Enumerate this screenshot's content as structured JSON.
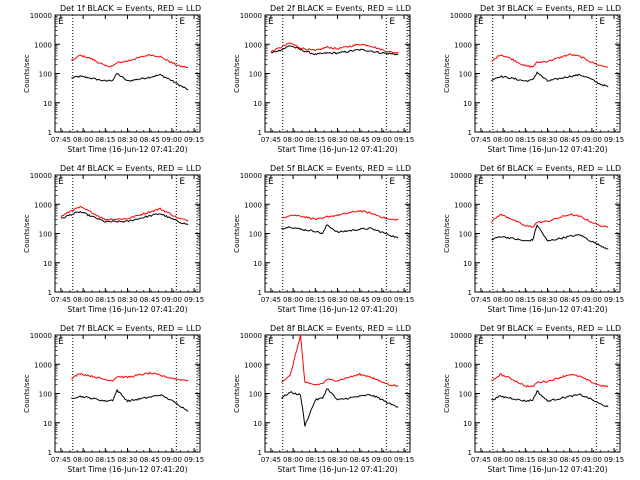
{
  "colors": {
    "events": "#000000",
    "lld": "#ff0000",
    "background": "#ffffff",
    "axis": "#000000"
  },
  "common": {
    "xlabel": "Start Time (16-Jun-12 07:41:20)",
    "ylabel": "Counts/sec",
    "x_ticks": [
      "07:45",
      "08:00",
      "08:15",
      "08:30",
      "08:45",
      "09:00",
      "09:15"
    ],
    "y_ticks": [
      "1",
      "10",
      "100",
      "1000",
      "10000"
    ],
    "marker": "E"
  },
  "chart_data": [
    {
      "type": "line",
      "title": "Det 1f BLACK = Events, RED = LLD",
      "xlabel": "Start Time (16-Jun-12 07:41:20)",
      "ylabel": "Counts/sec",
      "yscale": "log",
      "ylim": [
        1,
        10000
      ],
      "xlim": [
        "07:41",
        "09:19"
      ],
      "x": [
        "07:52",
        "07:58",
        "08:05",
        "08:15",
        "08:20",
        "08:23",
        "08:30",
        "08:45",
        "08:52",
        "08:58",
        "09:05",
        "09:11"
      ],
      "series": [
        {
          "name": "Events",
          "values": [
            70,
            80,
            70,
            55,
            60,
            100,
            55,
            75,
            90,
            65,
            40,
            28
          ]
        },
        {
          "name": "LLD",
          "values": [
            270,
            420,
            330,
            180,
            180,
            230,
            270,
            440,
            380,
            260,
            180,
            160
          ]
        }
      ],
      "dotted_lines": [
        "07:53",
        "09:03",
        "09:17"
      ],
      "marker": "E"
    },
    {
      "type": "line",
      "title": "Det 2f BLACK = Events, RED = LLD",
      "xlabel": "Start Time (16-Jun-12 07:41:20)",
      "ylabel": "Counts/sec",
      "yscale": "log",
      "ylim": [
        1,
        10000
      ],
      "xlim": [
        "07:41",
        "09:19"
      ],
      "x": [
        "07:45",
        "07:52",
        "07:58",
        "08:05",
        "08:15",
        "08:23",
        "08:30",
        "08:45",
        "08:52",
        "08:58",
        "09:05",
        "09:11"
      ],
      "series": [
        {
          "name": "Events",
          "values": [
            500,
            650,
            900,
            650,
            450,
            500,
            500,
            650,
            600,
            520,
            480,
            450
          ]
        },
        {
          "name": "LLD",
          "values": [
            550,
            800,
            1100,
            750,
            600,
            800,
            700,
            1000,
            900,
            700,
            550,
            500
          ]
        }
      ],
      "dotted_lines": [
        "07:53",
        "09:03",
        "09:17"
      ],
      "marker": "E"
    },
    {
      "type": "line",
      "title": "Det 3f BLACK = Events, RED = LLD",
      "xlabel": "Start Time (16-Jun-12 07:41:20)",
      "ylabel": "Counts/sec",
      "yscale": "log",
      "ylim": [
        1,
        10000
      ],
      "xlim": [
        "07:41",
        "09:19"
      ],
      "x": [
        "07:52",
        "07:58",
        "08:05",
        "08:15",
        "08:20",
        "08:23",
        "08:30",
        "08:45",
        "08:52",
        "08:58",
        "09:05",
        "09:11"
      ],
      "series": [
        {
          "name": "Events",
          "values": [
            60,
            80,
            70,
            55,
            60,
            110,
            55,
            80,
            90,
            70,
            45,
            35
          ]
        },
        {
          "name": "LLD",
          "values": [
            250,
            450,
            330,
            180,
            170,
            240,
            260,
            450,
            380,
            270,
            190,
            170
          ]
        }
      ],
      "dotted_lines": [
        "07:53",
        "09:03",
        "09:17"
      ],
      "marker": "E"
    },
    {
      "type": "line",
      "title": "Det 4f BLACK = Events, RED = LLD",
      "xlabel": "Start Time (16-Jun-12 07:41:20)",
      "ylabel": "Counts/sec",
      "yscale": "log",
      "ylim": [
        1,
        10000
      ],
      "xlim": [
        "07:41",
        "09:19"
      ],
      "x": [
        "07:45",
        "07:52",
        "07:58",
        "08:05",
        "08:15",
        "08:30",
        "08:45",
        "08:52",
        "08:58",
        "09:05",
        "09:11"
      ],
      "series": [
        {
          "name": "Events",
          "values": [
            320,
            450,
            550,
            400,
            250,
            260,
            400,
            480,
            350,
            250,
            200
          ]
        },
        {
          "name": "LLD",
          "values": [
            380,
            600,
            800,
            550,
            300,
            320,
            550,
            700,
            500,
            320,
            280
          ]
        }
      ],
      "dotted_lines": [
        "07:53",
        "09:03",
        "09:17"
      ],
      "marker": "E"
    },
    {
      "type": "line",
      "title": "Det 5f BLACK = Events, RED = LLD",
      "xlabel": "Start Time (16-Jun-12 07:41:20)",
      "ylabel": "Counts/sec",
      "yscale": "log",
      "ylim": [
        1,
        10000
      ],
      "xlim": [
        "07:41",
        "09:19"
      ],
      "x": [
        "07:52",
        "07:58",
        "08:05",
        "08:15",
        "08:20",
        "08:23",
        "08:30",
        "08:45",
        "08:52",
        "08:58",
        "09:05",
        "09:11"
      ],
      "series": [
        {
          "name": "Events",
          "values": [
            150,
            170,
            140,
            120,
            100,
            200,
            110,
            140,
            150,
            120,
            90,
            70
          ]
        },
        {
          "name": "LLD",
          "values": [
            330,
            430,
            400,
            310,
            320,
            380,
            420,
            600,
            500,
            400,
            300,
            300
          ]
        }
      ],
      "dotted_lines": [
        "07:53",
        "09:03",
        "09:17"
      ],
      "marker": "E"
    },
    {
      "type": "line",
      "title": "Det 6f BLACK = Events, RED = LLD",
      "xlabel": "Start Time (16-Jun-12 07:41:20)",
      "ylabel": "Counts/sec",
      "yscale": "log",
      "ylim": [
        1,
        10000
      ],
      "xlim": [
        "07:41",
        "09:19"
      ],
      "x": [
        "07:52",
        "07:58",
        "08:05",
        "08:15",
        "08:20",
        "08:23",
        "08:30",
        "08:45",
        "08:52",
        "08:58",
        "09:05",
        "09:11"
      ],
      "series": [
        {
          "name": "Events",
          "values": [
            60,
            80,
            70,
            55,
            60,
            200,
            55,
            80,
            90,
            60,
            40,
            30
          ]
        },
        {
          "name": "LLD",
          "values": [
            250,
            450,
            330,
            180,
            170,
            240,
            260,
            450,
            380,
            270,
            190,
            160
          ]
        }
      ],
      "dotted_lines": [
        "07:53",
        "09:03",
        "09:17"
      ],
      "marker": "E"
    },
    {
      "type": "line",
      "title": "Det 7f BLACK = Events, RED = LLD",
      "xlabel": "Start Time (16-Jun-12 07:41:20)",
      "ylabel": "Counts/sec",
      "yscale": "log",
      "ylim": [
        1,
        10000
      ],
      "xlim": [
        "07:41",
        "09:19"
      ],
      "x": [
        "07:52",
        "07:58",
        "08:05",
        "08:15",
        "08:20",
        "08:23",
        "08:30",
        "08:45",
        "08:52",
        "08:58",
        "09:05",
        "09:11"
      ],
      "series": [
        {
          "name": "Events",
          "values": [
            70,
            80,
            70,
            55,
            60,
            130,
            55,
            75,
            90,
            65,
            40,
            25
          ]
        },
        {
          "name": "LLD",
          "values": [
            330,
            480,
            400,
            300,
            280,
            380,
            360,
            500,
            420,
            350,
            300,
            280
          ]
        }
      ],
      "dotted_lines": [
        "07:53",
        "09:03",
        "09:17"
      ],
      "marker": "E"
    },
    {
      "type": "line",
      "title": "Det 8f BLACK = Events, RED = LLD",
      "xlabel": "Start Time (16-Jun-12 07:41:20)",
      "ylabel": "Counts/sec",
      "yscale": "log",
      "ylim": [
        1,
        10000
      ],
      "xlim": [
        "07:41",
        "09:19"
      ],
      "x": [
        "07:52",
        "07:58",
        "08:05",
        "08:08",
        "08:15",
        "08:20",
        "08:23",
        "08:30",
        "08:45",
        "08:52",
        "08:58",
        "09:05",
        "09:11"
      ],
      "series": [
        {
          "name": "Events",
          "values": [
            70,
            110,
            90,
            8,
            60,
            70,
            150,
            60,
            80,
            90,
            70,
            45,
            35
          ]
        },
        {
          "name": "LLD",
          "values": [
            250,
            400,
            10000,
            230,
            200,
            220,
            300,
            280,
            450,
            380,
            270,
            200,
            180
          ]
        }
      ],
      "dotted_lines": [
        "07:53",
        "09:03",
        "09:17"
      ],
      "marker": "E"
    },
    {
      "type": "line",
      "title": "Det 9f BLACK = Events, RED = LLD",
      "xlabel": "Start Time (16-Jun-12 07:41:20)",
      "ylabel": "Counts/sec",
      "yscale": "log",
      "ylim": [
        1,
        10000
      ],
      "xlim": [
        "07:41",
        "09:19"
      ],
      "x": [
        "07:52",
        "07:58",
        "08:05",
        "08:15",
        "08:20",
        "08:23",
        "08:30",
        "08:45",
        "08:52",
        "08:58",
        "09:05",
        "09:11"
      ],
      "series": [
        {
          "name": "Events",
          "values": [
            60,
            80,
            70,
            55,
            60,
            120,
            55,
            80,
            90,
            70,
            45,
            35
          ]
        },
        {
          "name": "LLD",
          "values": [
            250,
            450,
            330,
            180,
            170,
            240,
            260,
            450,
            380,
            270,
            190,
            170
          ]
        }
      ],
      "dotted_lines": [
        "07:53",
        "09:03",
        "09:17"
      ],
      "marker": "E"
    }
  ]
}
